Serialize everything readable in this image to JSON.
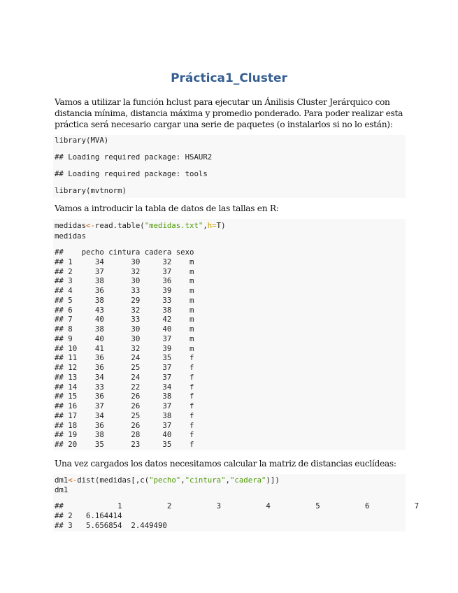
{
  "title": "Práctica1_Cluster",
  "paragraphs": [
    "Vamos a utilizar la función hclust para ejecutar un Ánilisis Cluster Jerárquico con distancia mínima, distancia máxima y promedio ponderado. Para poder realizar esta práctica será necesario cargar una serie de paquetes (o instalarlos si no lo están):",
    "Vamos a introducir la tabla de datos de las tallas en R:",
    "Una vez cargados los datos necesitamos calcular la matriz de distancias euclídeas:"
  ],
  "block1": {
    "lines": [
      "library(MVA)",
      "## Loading required package: HSAUR2",
      "## Loading required package: tools",
      "library(mvtnorm)"
    ]
  },
  "block2": {
    "code1": {
      "a": "medidas",
      "op": "<-",
      "b": "read.table(",
      "str": "\"medidas.txt\"",
      "c": ",",
      "arg": "h=",
      "d": "T)"
    },
    "code2": "medidas",
    "output": [
      "##    pecho cintura cadera sexo",
      "## 1     34      30     32    m",
      "## 2     37      32     37    m",
      "## 3     38      30     36    m",
      "## 4     36      33     39    m",
      "## 5     38      29     33    m",
      "## 6     43      32     38    m",
      "## 7     40      33     42    m",
      "## 8     38      30     40    m",
      "## 9     40      30     37    m",
      "## 10    41      32     39    m",
      "## 11    36      24     35    f",
      "## 12    36      25     37    f",
      "## 13    34      24     37    f",
      "## 14    33      22     34    f",
      "## 15    36      26     38    f",
      "## 16    37      26     37    f",
      "## 17    34      25     38    f",
      "## 18    36      26     37    f",
      "## 19    38      28     40    f",
      "## 20    35      23     35    f"
    ]
  },
  "block3": {
    "code1": {
      "a": "dm1",
      "op": "<-",
      "b": "dist(medidas[,c(",
      "s1": "\"pecho\"",
      "c1": ",",
      "s2": "\"cintura\"",
      "c2": ",",
      "s3": "\"cadera\"",
      "d": ")])"
    },
    "code2": "dm1",
    "output": [
      "##            1          2          3          4          5          6          7",
      "## 2   6.164414",
      "## 3   5.656854  2.449490"
    ]
  }
}
